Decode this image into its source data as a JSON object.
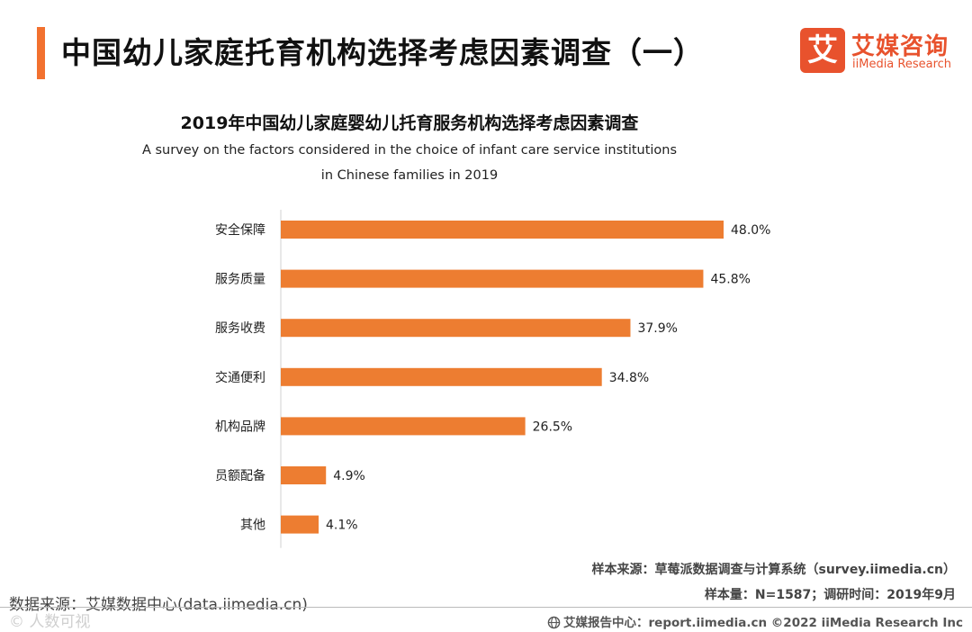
{
  "header": {
    "title": "中国幼儿家庭托育机构选择考虑因素调查（一）"
  },
  "logo": {
    "mark": "艾",
    "name": "艾媒咨询",
    "sub": "iiMedia Research"
  },
  "colors": {
    "accent": "#f2712f",
    "bar": "#ed7d31",
    "logo": "#e8522d"
  },
  "chart_data": {
    "type": "bar",
    "orientation": "horizontal",
    "title": "2019年中国幼儿家庭婴幼儿托育服务机构选择考虑因素调查",
    "subtitle": "A survey on the factors considered in the choice of infant care service institutions in Chinese families in 2019",
    "categories": [
      "安全保障",
      "服务质量",
      "服务收费",
      "交通便利",
      "机构品牌",
      "员额配备",
      "其他"
    ],
    "values": [
      48.0,
      45.8,
      37.9,
      34.8,
      26.5,
      4.9,
      4.1
    ],
    "value_labels": [
      "48.0%",
      "45.8%",
      "37.9%",
      "34.8%",
      "26.5%",
      "4.9%",
      "4.1%"
    ],
    "unit": "%",
    "xlim": [
      0,
      48
    ],
    "xlabel": "",
    "ylabel": "",
    "grid": false,
    "legend": "none"
  },
  "notes": {
    "sample_source": "样本来源：草莓派数据调查与计算系统（survey.iimedia.cn）",
    "sample_size": "样本量：N=1587；调研时间：2019年9月",
    "data_source": "数据来源：艾媒数据中心(data.iimedia.cn)"
  },
  "watermark": "© 人数可视",
  "footer": {
    "text": "艾媒报告中心：report.iimedia.cn  ©2022  iiMedia Research  Inc"
  }
}
